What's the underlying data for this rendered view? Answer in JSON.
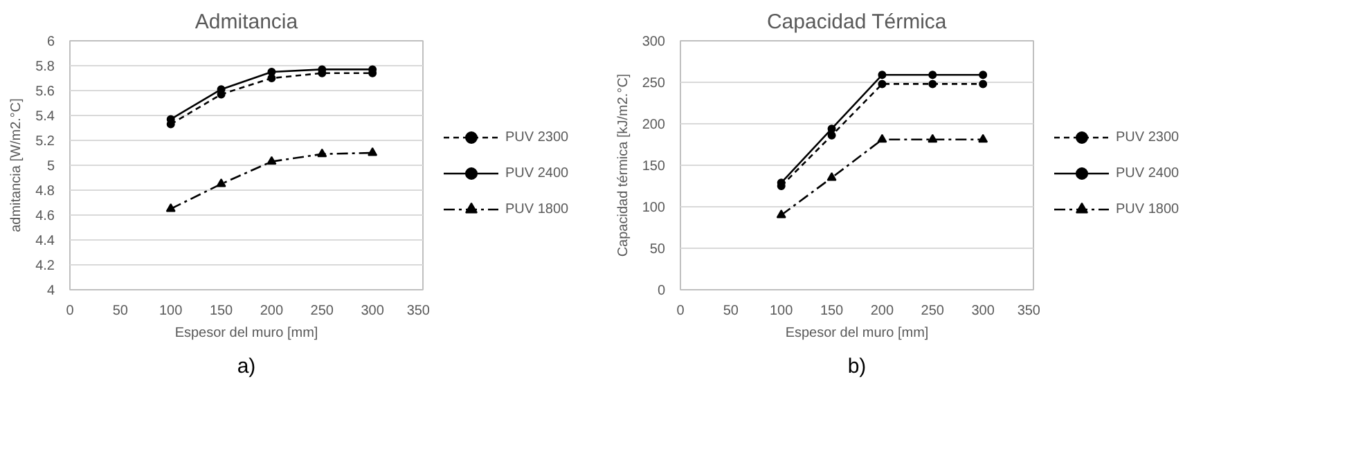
{
  "chart_data": [
    {
      "type": "line",
      "title": "Admitancia",
      "xlabel": "Espesor del muro [mm]",
      "ylabel": "admitancia [W/m2.°C]",
      "x": [
        100,
        150,
        200,
        250,
        300
      ],
      "xlim": [
        0,
        350
      ],
      "xticks": [
        0,
        50,
        100,
        150,
        200,
        250,
        300,
        350
      ],
      "ylim": [
        4,
        6
      ],
      "yticks": [
        4,
        4.2,
        4.4,
        4.6,
        4.8,
        5,
        5.2,
        5.4,
        5.6,
        5.8,
        6
      ],
      "grid": "y",
      "legend": "right",
      "annotations": [
        "a)"
      ],
      "series": [
        {
          "name": "PUV 2300",
          "color": "#000000",
          "marker": "circle",
          "line_style": "dashed",
          "values": [
            5.33,
            5.57,
            5.7,
            5.74,
            5.74
          ]
        },
        {
          "name": "PUV 2400",
          "color": "#000000",
          "marker": "circle",
          "line_style": "solid",
          "values": [
            5.37,
            5.61,
            5.75,
            5.77,
            5.77
          ]
        },
        {
          "name": "PUV 1800",
          "color": "#000000",
          "marker": "triangle",
          "line_style": "dashdot",
          "values": [
            4.65,
            4.85,
            5.03,
            5.09,
            5.1
          ]
        }
      ]
    },
    {
      "type": "line",
      "title": "Capacidad Térmica",
      "xlabel": "Espesor del muro [mm]",
      "ylabel": "Capacidad térmica [kJ/m2.°C]",
      "x": [
        100,
        150,
        200,
        250,
        300
      ],
      "xlim": [
        0,
        350
      ],
      "xticks": [
        0,
        50,
        100,
        150,
        200,
        250,
        300,
        350
      ],
      "ylim": [
        0,
        300
      ],
      "yticks": [
        0,
        50,
        100,
        150,
        200,
        250,
        300
      ],
      "grid": "y",
      "legend": "right",
      "annotations": [
        "b)"
      ],
      "series": [
        {
          "name": "PUV 2300",
          "color": "#000000",
          "marker": "circle",
          "line_style": "dashed",
          "values": [
            125,
            186,
            248,
            248,
            248
          ]
        },
        {
          "name": "PUV 2400",
          "color": "#000000",
          "marker": "circle",
          "line_style": "solid",
          "values": [
            129,
            194,
            259,
            259,
            259
          ]
        },
        {
          "name": "PUV 1800",
          "color": "#000000",
          "marker": "triangle",
          "line_style": "dashdot",
          "values": [
            90,
            135,
            181,
            181,
            181
          ]
        }
      ]
    }
  ]
}
